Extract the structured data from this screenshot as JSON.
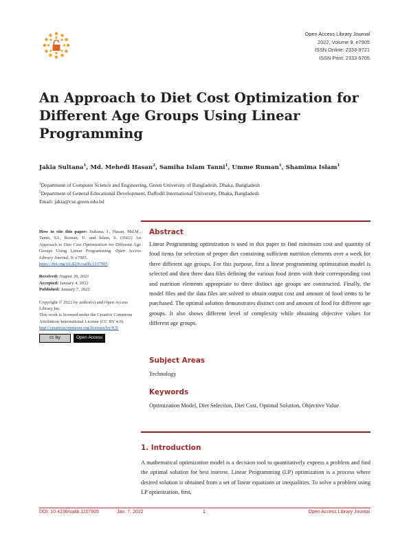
{
  "journal": {
    "name": "Open Access Library Journal",
    "volume": "2022, Volume 9, e7905",
    "issn_online": "ISSN Online: 2333-9721",
    "issn_print": "ISSN Print: 2333-9705"
  },
  "title": "An Approach to Diet Cost Optimization for Different Age Groups Using Linear Programming",
  "authors": [
    {
      "name": "Jakia Sultana",
      "sup": "1"
    },
    {
      "name": "Md. Mehedi Hasan",
      "sup": "2"
    },
    {
      "name": "Samiha Islam Tanni",
      "sup": "1"
    },
    {
      "name": "Umme Ruman",
      "sup": "1"
    },
    {
      "name": "Shamima Islam",
      "sup": "1"
    }
  ],
  "affiliations": [
    {
      "sup": "1",
      "text": "Department of Computer Science and Engineering, Green University of Bangladesh, Dhaka, Bangladesh"
    },
    {
      "sup": "2",
      "text": "Department of General Educational Development, Daffodil International University, Dhaka, Bangladesh"
    }
  ],
  "email": "Email: jakia@cse.green.edu.bd",
  "sidebar": {
    "cite_label": "How to cite this paper:",
    "cite_text": "Sultana, J., Hasan, Md.M., Tanni, S.I., Ruman, U. and Islam, S. (2022) An Approach to Diet Cost Optimization for Different Age Groups Using Linear Programming.",
    "cite_journal": "Open Access Library Journal",
    "cite_tail": ", 9: e7905.",
    "doi_link": "https://doi.org/10.4236/oalib.1107905",
    "received_label": "Received:",
    "received": "August 30, 2021",
    "accepted_label": "Accepted:",
    "accepted": "January 4, 2022",
    "published_label": "Published:",
    "published": "January 7, 2022",
    "copyright": "Copyright © 2022 by author(s) and Open Access Library Inc.",
    "license": "This work is licensed under the Creative Commons Attribution International License (CC BY 4.0).",
    "license_link": "http://creativecommons.org/licenses/by/4.0/",
    "cc_badge": "cc  by",
    "oa_badge": "Open Access"
  },
  "abstract": {
    "heading": "Abstract",
    "text": "Linear Programming optimization is used in this paper to find minimum cost and quantity of food items for selection of proper diet containing sufficient nutrition elements over a week for three different age groups. For this purpose, first a linear programming optimization model is selected and then three data files defining the various food items with their corresponding cost and nutrition elements appropriate to three distinct age groups are constructed. Finally, the model files and the data files are solved to obtain output cost and amount of food items to be purchased. The optimal solution demonstrates distinct cost and amount of food for different age groups. It also shows different level of complexity while obtaining objective values for different age groups."
  },
  "subject": {
    "heading": "Subject Areas",
    "text": "Technology"
  },
  "keywords": {
    "heading": "Keywords",
    "text": "Optimization Model, Diet Selection, Diet Cost, Optimal Solution, Objective Value"
  },
  "introduction": {
    "heading": "1. Introduction",
    "text": "A mathematical optimization model is a decision tool to quantitatively express a problem and find the optimal solution for best interest. Linear Programming (LP) optimization is a process where desired solution is obtained from a set of linear equations or inequalities. To solve a problem using LP optimization, first,"
  },
  "footer": {
    "doi": "DOI: 10.4236/oalib.1107905",
    "date": "Jan. 7, 2022",
    "page": "1",
    "journal": "Open Access Library Journal"
  },
  "colors": {
    "accent": "#9b2b2b",
    "logo": "#f0a030",
    "footer": "#c23a3a"
  }
}
